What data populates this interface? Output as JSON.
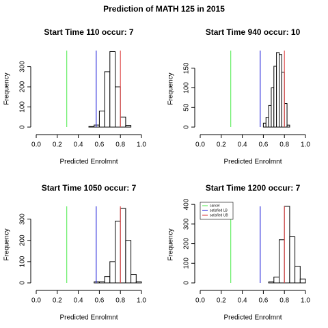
{
  "title": "Prediction of MATH 125 in 2015",
  "chart_data": [
    {
      "type": "histogram",
      "title": "Start Time 110 occur: 7",
      "xlabel": "Predicted Enrolmnt",
      "ylabel": "Frequency",
      "bins": [
        0.5,
        0.55,
        0.6,
        0.65,
        0.7,
        0.75,
        0.8,
        0.85,
        0.9
      ],
      "counts": [
        3,
        10,
        80,
        275,
        375,
        200,
        50,
        8
      ],
      "xlim": [
        0,
        1
      ],
      "ylim": [
        0,
        380
      ],
      "xticks": [
        {
          "value": 0,
          "label": "0.0"
        },
        0.2,
        0.4,
        0.6,
        0.8,
        {
          "value": 1,
          "label": "1.0"
        }
      ],
      "yticks": [
        0,
        100,
        200,
        300
      ],
      "vlines": [
        {
          "value": 0.29,
          "color": "#66ee66"
        },
        {
          "value": 0.57,
          "color": "#3333dd"
        },
        {
          "value": 0.8,
          "color": "#e05050"
        }
      ]
    },
    {
      "type": "histogram",
      "title": "Start Time 940 occur: 10",
      "xlabel": "Predicted Enrolmnt",
      "ylabel": "Frequency",
      "bins": [
        0.6,
        0.625,
        0.65,
        0.675,
        0.7,
        0.725,
        0.75,
        0.775,
        0.8,
        0.825,
        0.85
      ],
      "counts": [
        10,
        25,
        55,
        100,
        155,
        190,
        185,
        140,
        60,
        5
      ],
      "xlim": [
        0,
        1
      ],
      "ylim": [
        0,
        195
      ],
      "xticks": [
        {
          "value": 0,
          "label": "0.0"
        },
        0.2,
        0.4,
        0.6,
        0.8,
        {
          "value": 1,
          "label": "1.0"
        }
      ],
      "yticks": [
        0,
        50,
        100,
        150
      ],
      "vlines": [
        {
          "value": 0.29,
          "color": "#66ee66"
        },
        {
          "value": 0.57,
          "color": "#3333dd"
        },
        {
          "value": 0.8,
          "color": "#e05050"
        }
      ]
    },
    {
      "type": "histogram",
      "title": "Start Time 1050 occur: 7",
      "xlabel": "Predicted Enrolmnt",
      "ylabel": "Frequency",
      "bins": [
        0.55,
        0.6,
        0.65,
        0.7,
        0.75,
        0.8,
        0.85,
        0.9,
        0.95,
        1.0
      ],
      "counts": [
        5,
        5,
        30,
        100,
        290,
        350,
        200,
        40,
        5
      ],
      "xlim": [
        0,
        1
      ],
      "ylim": [
        0,
        360
      ],
      "xticks": [
        {
          "value": 0,
          "label": "0.0"
        },
        0.2,
        0.4,
        0.6,
        0.8,
        {
          "value": 1,
          "label": "1.0"
        }
      ],
      "yticks": [
        0,
        100,
        200,
        300
      ],
      "vlines": [
        {
          "value": 0.29,
          "color": "#66ee66"
        },
        {
          "value": 0.57,
          "color": "#3333dd"
        },
        {
          "value": 0.8,
          "color": "#e05050"
        }
      ]
    },
    {
      "type": "histogram",
      "title": "Start Time 1200 occur: 7",
      "xlabel": "Predicted Enrolmnt",
      "ylabel": "Frequency",
      "bins": [
        0.65,
        0.7,
        0.75,
        0.8,
        0.85,
        0.9,
        0.95,
        1.0
      ],
      "counts": [
        5,
        30,
        220,
        390,
        235,
        85,
        20
      ],
      "xlim": [
        0,
        1
      ],
      "ylim": [
        0,
        390
      ],
      "xticks": [
        {
          "value": 0,
          "label": "0.0"
        },
        0.2,
        0.4,
        0.6,
        0.8,
        {
          "value": 1,
          "label": "1.0"
        }
      ],
      "yticks": [
        0,
        100,
        200,
        300,
        400
      ],
      "vlines": [
        {
          "value": 0.29,
          "color": "#66ee66"
        },
        {
          "value": 0.57,
          "color": "#3333dd"
        },
        {
          "value": 0.8,
          "color": "#e05050"
        }
      ],
      "legend": [
        "cancel",
        "satisfied LB",
        "satisfied UB"
      ],
      "legend_position": "top-left"
    }
  ]
}
